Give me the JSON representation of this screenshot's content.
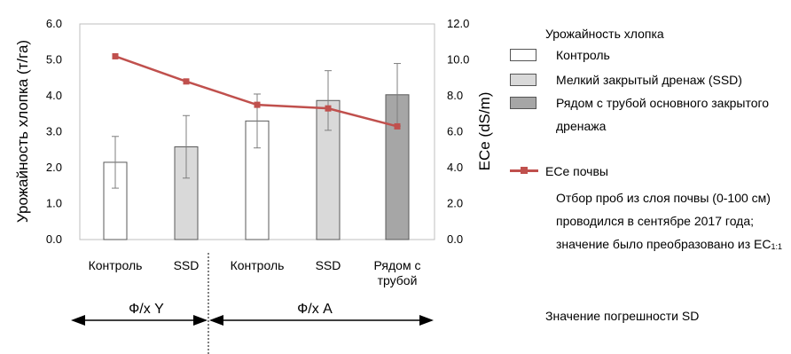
{
  "chart_data": {
    "type": "bar",
    "categories": [
      "Контроль",
      "SSD",
      "Контроль",
      "SSD",
      "Рядом с трубой"
    ],
    "category_lines": [
      [
        "Контроль"
      ],
      [
        "SSD"
      ],
      [
        "Контроль"
      ],
      [
        "SSD"
      ],
      [
        "Рядом с",
        "трубой"
      ]
    ],
    "series": [
      {
        "name": "Урожайность хлопка",
        "type": "bar",
        "axis": "left",
        "values": [
          2.15,
          2.58,
          3.3,
          3.87,
          4.03
        ],
        "sd": [
          0.72,
          0.87,
          0.75,
          0.83,
          0.87
        ],
        "colors": [
          "#ffffff",
          "#d9d9d9",
          "#ffffff",
          "#d9d9d9",
          "#a6a6a6"
        ]
      },
      {
        "name": "ECe почвы",
        "type": "line",
        "axis": "right",
        "values": [
          10.2,
          8.8,
          7.5,
          7.3,
          6.3
        ],
        "color": "#c0504d"
      }
    ],
    "y_left": {
      "label": "Урожайность хлопка (т/га)",
      "range": [
        0,
        6
      ],
      "ticks": [
        "0.0",
        "1.0",
        "2.0",
        "3.0",
        "4.0",
        "5.0",
        "6.0"
      ]
    },
    "y_right": {
      "label": "ECe (dS/m)",
      "range": [
        0,
        12
      ],
      "ticks": [
        "0.0",
        "2.0",
        "4.0",
        "6.0",
        "8.0",
        "10.0",
        "12.0"
      ]
    },
    "groups": [
      {
        "label": "Ф/х Y",
        "categories": [
          0,
          1
        ]
      },
      {
        "label": "Ф/х A",
        "categories": [
          2,
          3,
          4
        ]
      }
    ],
    "grid": false,
    "legend_position": "right"
  },
  "legend": {
    "title": "Урожайность хлопка",
    "items": [
      {
        "label": "Контроль",
        "color": "#ffffff"
      },
      {
        "label": "Мелкий закрытый дренаж (SSD)",
        "color": "#d9d9d9"
      },
      {
        "label": "Рядом с трубой основного закрытого дренажа",
        "color": "#a6a6a6"
      }
    ],
    "line_label": "ECe почвы",
    "line_color": "#c0504d",
    "note_main": "Отбор проб из слоя почвы (0-100 см) проводился в сентябре 2017 года; значение было преобразовано из EC",
    "note_sub": "1:1",
    "sd_note": "Значение погрешности SD"
  }
}
